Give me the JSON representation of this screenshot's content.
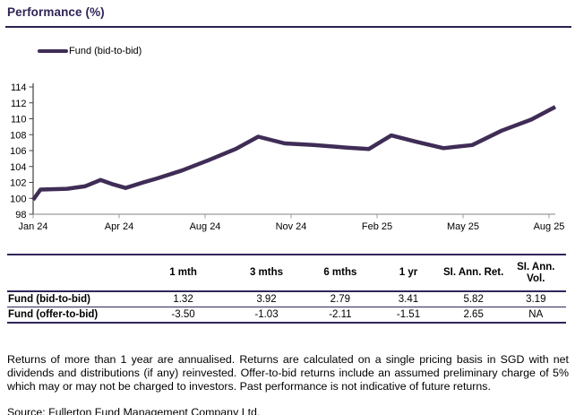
{
  "title": "Performance (%)",
  "legend": {
    "label": "Fund (bid-to-bid)"
  },
  "colors": {
    "accent": "#32255A",
    "line": "#3F2D56",
    "y_axis": "#404040",
    "x_axis": "#9B9B9B",
    "tick_text": "#000000"
  },
  "chart_data": {
    "type": "line",
    "title": "Performance (%)",
    "legend_entries": [
      "Fund (bid-to-bid)"
    ],
    "legend_position": "top-left",
    "xlabel": "",
    "ylabel": "",
    "x_tick_labels": [
      "Jan 24",
      "Apr 24",
      "Aug 24",
      "Nov 24",
      "Feb 25",
      "May 25",
      "Aug 25"
    ],
    "y_ticks": [
      98,
      100,
      102,
      104,
      106,
      108,
      110,
      112,
      114
    ],
    "ylim": [
      98,
      114
    ],
    "grid": false,
    "series": [
      {
        "name": "Fund (bid-to-bid)",
        "x_unit": "fraction of x-axis from Jan 24 to Aug 25",
        "points": [
          [
            0.0,
            99.8
          ],
          [
            0.014,
            101.1
          ],
          [
            0.065,
            101.2
          ],
          [
            0.099,
            101.5
          ],
          [
            0.129,
            102.3
          ],
          [
            0.151,
            101.8
          ],
          [
            0.177,
            101.3
          ],
          [
            0.211,
            102.0
          ],
          [
            0.237,
            102.5
          ],
          [
            0.285,
            103.5
          ],
          [
            0.336,
            104.8
          ],
          [
            0.388,
            106.2
          ],
          [
            0.431,
            107.75
          ],
          [
            0.482,
            106.9
          ],
          [
            0.537,
            106.7
          ],
          [
            0.605,
            106.35
          ],
          [
            0.643,
            106.2
          ],
          [
            0.686,
            107.9
          ],
          [
            0.734,
            107.1
          ],
          [
            0.786,
            106.3
          ],
          [
            0.841,
            106.7
          ],
          [
            0.897,
            108.5
          ],
          [
            0.954,
            109.9
          ],
          [
            1.0,
            111.5
          ]
        ]
      }
    ]
  },
  "table": {
    "headers": [
      "",
      "1 mth",
      "3 mths",
      "6 mths",
      "1 yr",
      "SI. Ann. Ret.",
      "SI. Ann. Vol."
    ],
    "rows": [
      {
        "label": "Fund (bid-to-bid)",
        "values": [
          "1.32",
          "3.92",
          "2.79",
          "3.41",
          "5.82",
          "3.19"
        ]
      },
      {
        "label": "Fund (offer-to-bid)",
        "values": [
          "-3.50",
          "-1.03",
          "-2.11",
          "-1.51",
          "2.65",
          "NA"
        ]
      }
    ]
  },
  "notes": {
    "disclaimer": "Returns of more than 1 year are annualised. Returns are calculated on a single pricing basis in SGD with net dividends and distributions (if any) reinvested. Offer-to-bid returns include an assumed preliminary charge of 5% which may or may not be charged to investors. Past performance is not indicative of future returns.",
    "source": "Source: Fullerton Fund Management Company Ltd."
  }
}
